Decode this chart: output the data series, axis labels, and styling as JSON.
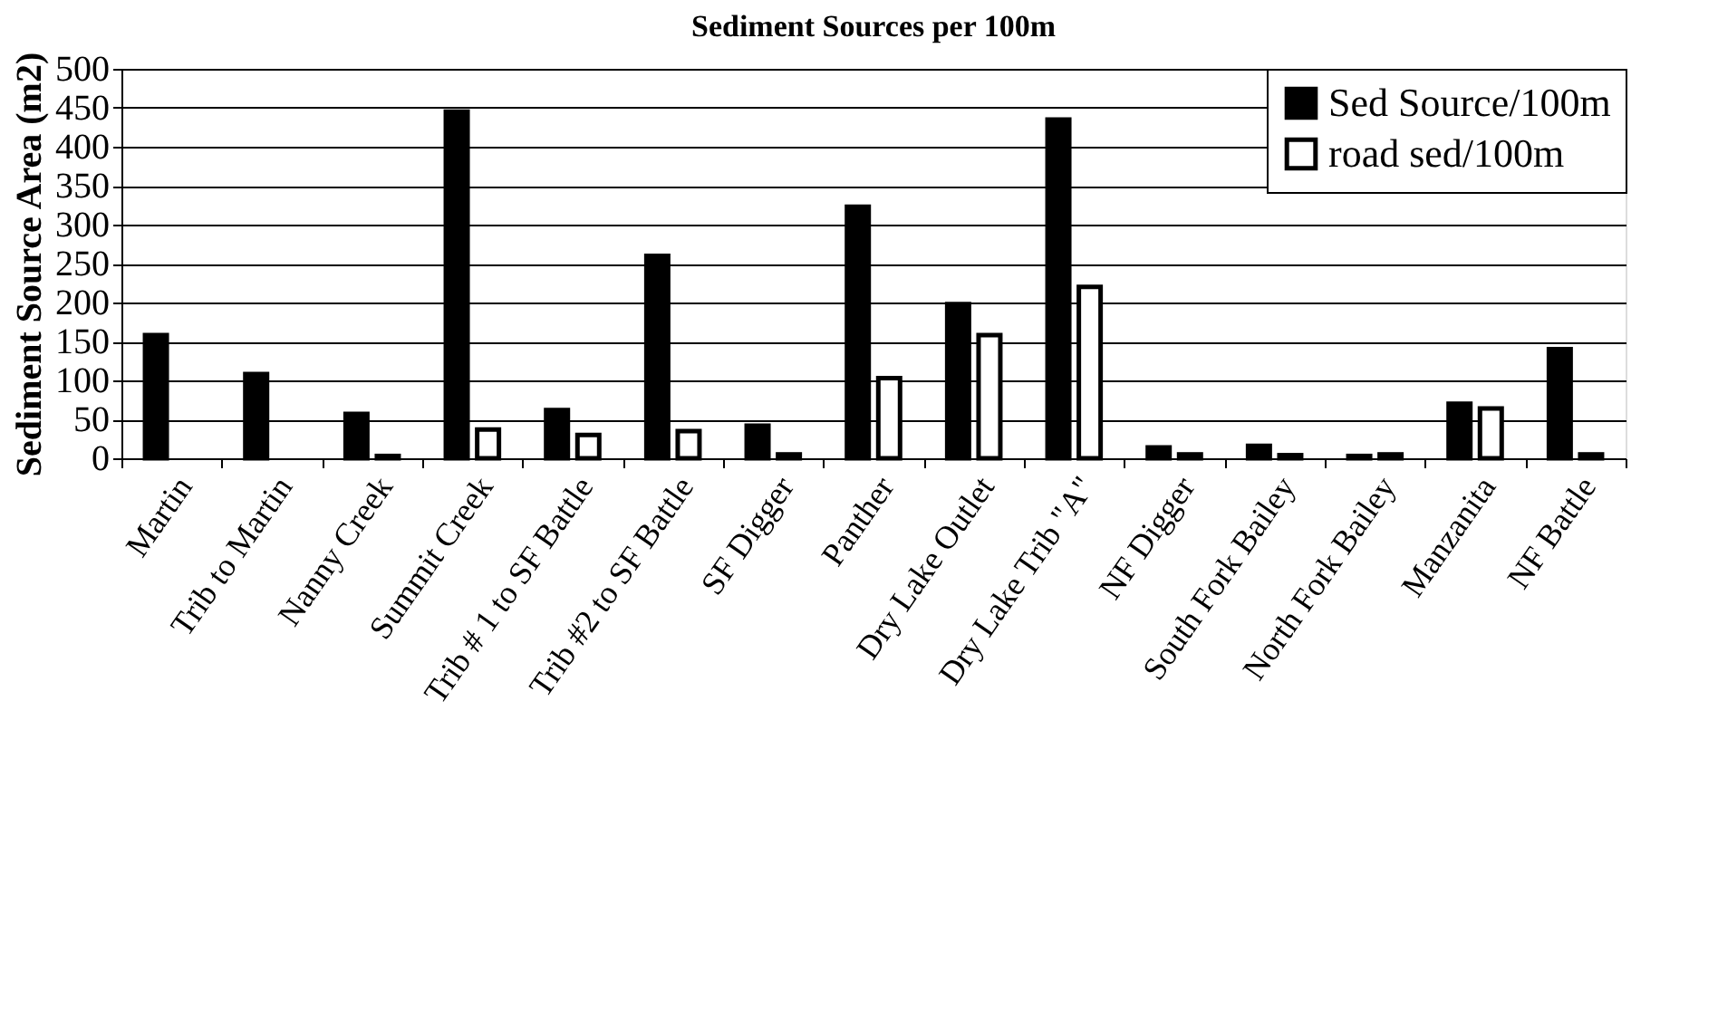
{
  "chart_data": {
    "type": "bar",
    "title": "Sediment Sources per 100m",
    "ylabel": "Sediment Source Area (m2)",
    "categories": [
      "Martin",
      "Trib to Martin",
      "Nanny Creek",
      "Summit Creek",
      "Trib # 1 to SF Battle",
      "Trib #2 to SF Battle",
      "SF Digger",
      "Panther",
      "Dry Lake Outlet",
      "Dry Lake Trib \"A\"",
      "NF Digger",
      "South Fork Bailey",
      "North Fork Bailey",
      "Manzanita",
      "NF Battle"
    ],
    "series": [
      {
        "name": "Sed Source/100m",
        "color": "#000000",
        "values": [
          158,
          108,
          57,
          445,
          62,
          260,
          42,
          323,
          198,
          435,
          14,
          16,
          3,
          70,
          140
        ]
      },
      {
        "name": "road sed/100m",
        "color": "#ffffff",
        "values": [
          null,
          null,
          3,
          37,
          30,
          35,
          5,
          103,
          158,
          220,
          5,
          4,
          5,
          64,
          5
        ]
      }
    ],
    "ylim": [
      0,
      500
    ],
    "yticks": [
      0,
      50,
      100,
      150,
      200,
      250,
      300,
      350,
      400,
      450,
      500
    ],
    "grid": "y",
    "legend": "top right"
  }
}
